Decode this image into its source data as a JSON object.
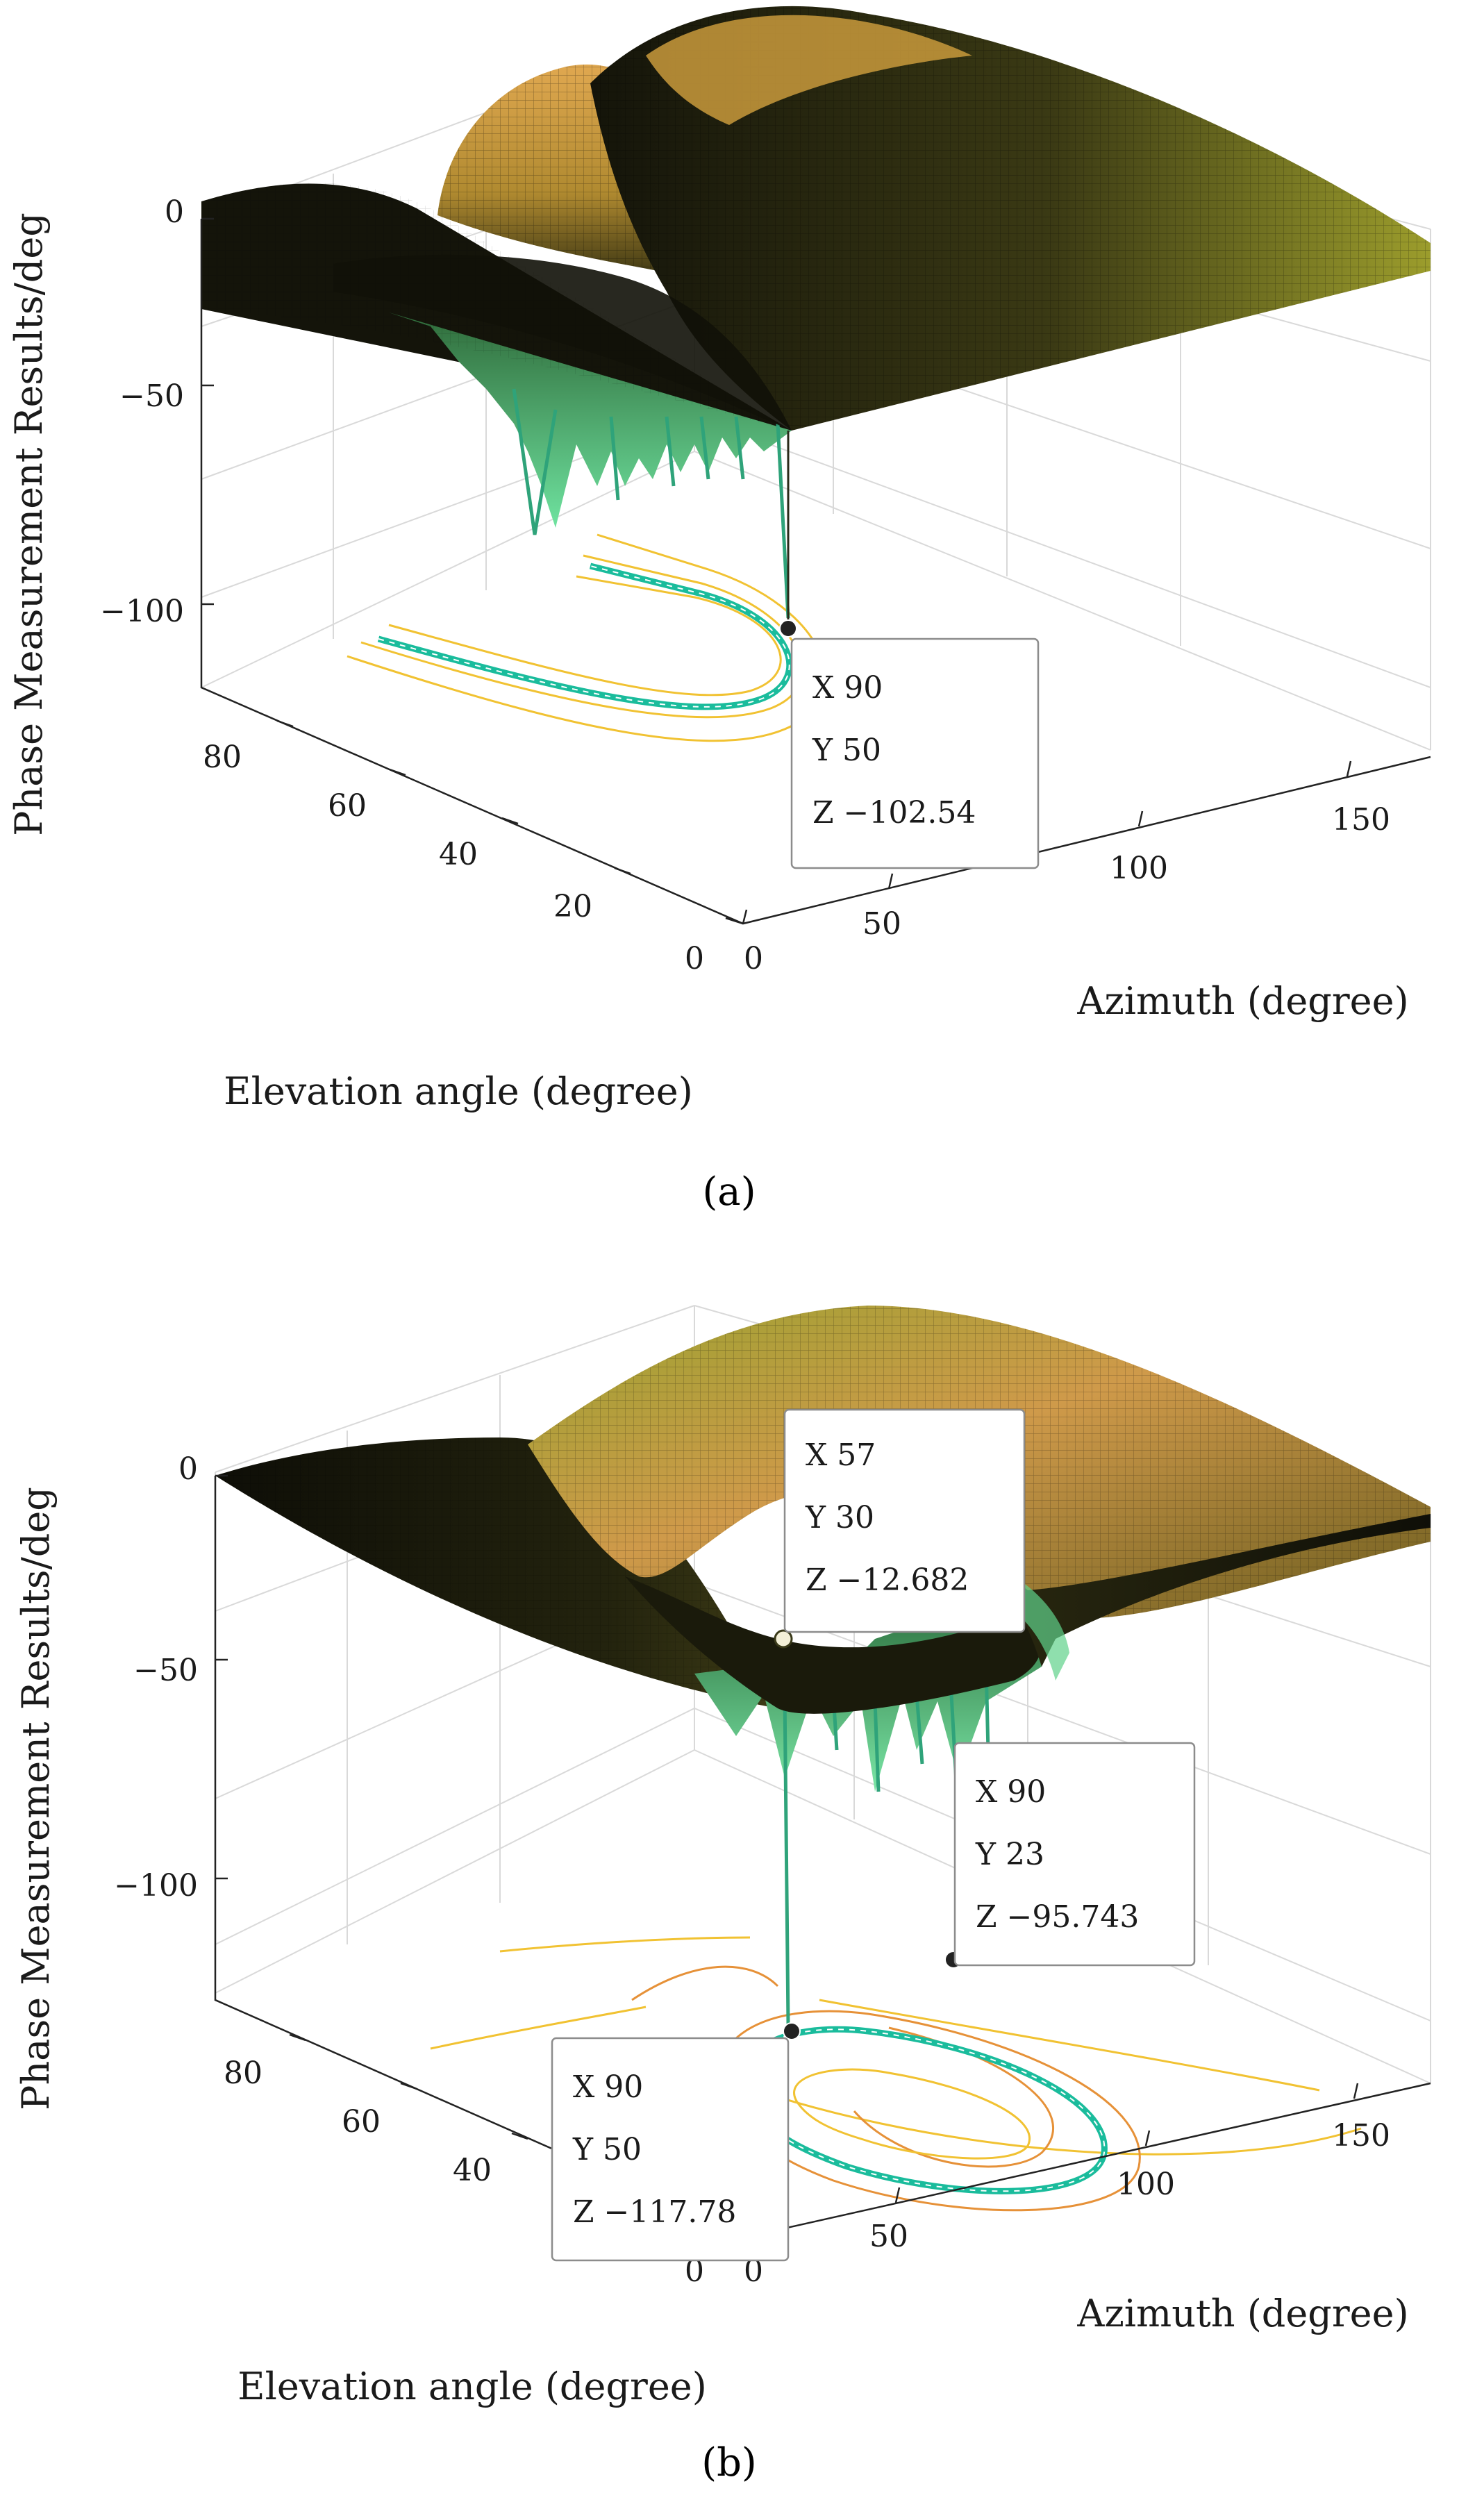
{
  "figures": [
    {
      "id": "a",
      "panel_label": "(a)",
      "chart_data": {
        "type": "surface3d",
        "zlabel": "Phase Measurement Results/deg",
        "xlabel": "Azimuth (degree)",
        "ylabel": "Elevation angle (degree)",
        "zticks": [
          "0",
          "−50",
          "−100"
        ],
        "xticks": [
          "0",
          "50",
          "100",
          "150"
        ],
        "yticks": [
          "0",
          "20",
          "40",
          "60",
          "80"
        ],
        "xlim": [
          0,
          180
        ],
        "ylim": [
          0,
          90
        ],
        "zlim": [
          -120,
          0
        ],
        "datatips": [
          {
            "x": 90,
            "y": 50,
            "z": -102.54,
            "line_x": "X 90",
            "line_y": "Y 50",
            "line_z": "Z −102.54"
          }
        ]
      }
    },
    {
      "id": "b",
      "panel_label": "(b)",
      "chart_data": {
        "type": "surface3d",
        "zlabel": "Phase Measurement Results/deg",
        "xlabel": "Azimuth (degree)",
        "ylabel": "Elevation angle (degree)",
        "zticks": [
          "0",
          "−50",
          "−100"
        ],
        "xticks": [
          "0",
          "50",
          "100",
          "150"
        ],
        "yticks": [
          "0",
          "40",
          "60",
          "80"
        ],
        "xlim": [
          0,
          180
        ],
        "ylim": [
          0,
          90
        ],
        "zlim": [
          -120,
          0
        ],
        "datatips": [
          {
            "x": 57,
            "y": 30,
            "z": -12.682,
            "line_x": "X 57",
            "line_y": "Y 30",
            "line_z": "Z −12.682"
          },
          {
            "x": 90,
            "y": 23,
            "z": -95.743,
            "line_x": "X 90",
            "line_y": "Y 23",
            "line_z": "Z −95.743"
          },
          {
            "x": 90,
            "y": 50,
            "z": -117.78,
            "line_x": "X 90",
            "line_y": "Y 50",
            "line_z": "Z −117.78"
          }
        ]
      }
    }
  ],
  "colors": {
    "surface_dark": "#15150a",
    "surface_olive": "#6b6a1c",
    "surface_gold": "#d8a442",
    "surface_yellow": "#c4c43a",
    "contour_teal": "#1abc9c",
    "contour_yellow": "#f1c232"
  }
}
